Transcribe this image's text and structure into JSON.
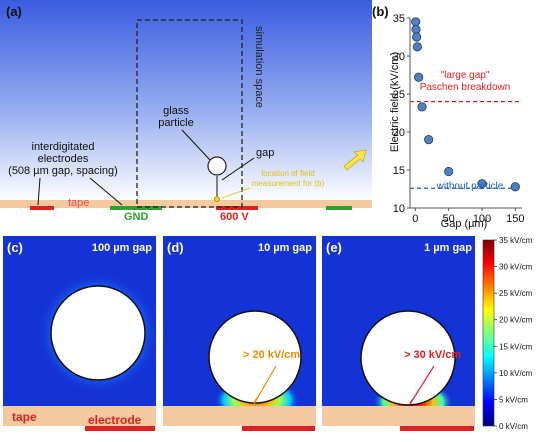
{
  "panel_a": {
    "panel_label": "(a)",
    "sim_space_label": "simulation space",
    "glass_particle_line1": "glass",
    "glass_particle_line2": "particle",
    "gap_label": "gap",
    "electrodes_line1": "interdigitated",
    "electrodes_line2": "electrodes",
    "electrodes_line3": "(508 µm gap, spacing)",
    "tape_label": "tape",
    "gnd_label": "GND",
    "voltage_label": "600 V",
    "field_note_line1": "location of field",
    "field_note_line2": "measurement for (b)"
  },
  "panel_b": {
    "panel_label": "(b)",
    "paschen_line1": "\"large gap\"",
    "paschen_line2": "Paschen breakdown",
    "without_particle": "without particle"
  },
  "panel_c": {
    "panel_label": "(c)",
    "gap_text": "100 µm gap",
    "tape_label": "tape",
    "electrode_label": "electrode"
  },
  "panel_d": {
    "panel_label": "(d)",
    "gap_text": "10 µm gap",
    "annotation": "> 20 kV/cm"
  },
  "panel_e": {
    "panel_label": "(e)",
    "gap_text": "1 µm gap",
    "annotation": "> 30 kV/cm"
  },
  "colorbar": {
    "ticks": [
      "35 kV/cm",
      "30 kV/cm",
      "25 kV/cm",
      "20 kV/cm",
      "15 kV/cm",
      "10 kV/cm",
      "5 kV/cm",
      "0 kV/cm"
    ],
    "colors": [
      "#00007f",
      "#0000ff",
      "#007fff",
      "#00ffff",
      "#7fff7f",
      "#ffff00",
      "#ff7f00",
      "#ff0000",
      "#7f0000"
    ]
  },
  "chart_data": {
    "type": "scatter",
    "xlabel": "Gap (µm)",
    "ylabel": "Electric field (kV/cm)",
    "xlim": [
      -8,
      160
    ],
    "ylim": [
      10,
      35
    ],
    "xticks": [
      0,
      50,
      100,
      150
    ],
    "yticks": [
      10,
      15,
      20,
      25,
      30,
      35
    ],
    "series": [
      {
        "x": [
          0.5,
          1,
          2,
          3,
          5,
          10,
          20,
          50,
          100,
          150
        ],
        "y": [
          34.5,
          33.5,
          32.5,
          31.2,
          27.2,
          23.3,
          19.0,
          14.8,
          13.2,
          12.8
        ]
      }
    ],
    "reference_lines": [
      {
        "y": 24.0,
        "color": "#e02020"
      },
      {
        "y": 12.6,
        "color": "#1f5fbf"
      }
    ],
    "marker_color": "#4f81bd"
  }
}
